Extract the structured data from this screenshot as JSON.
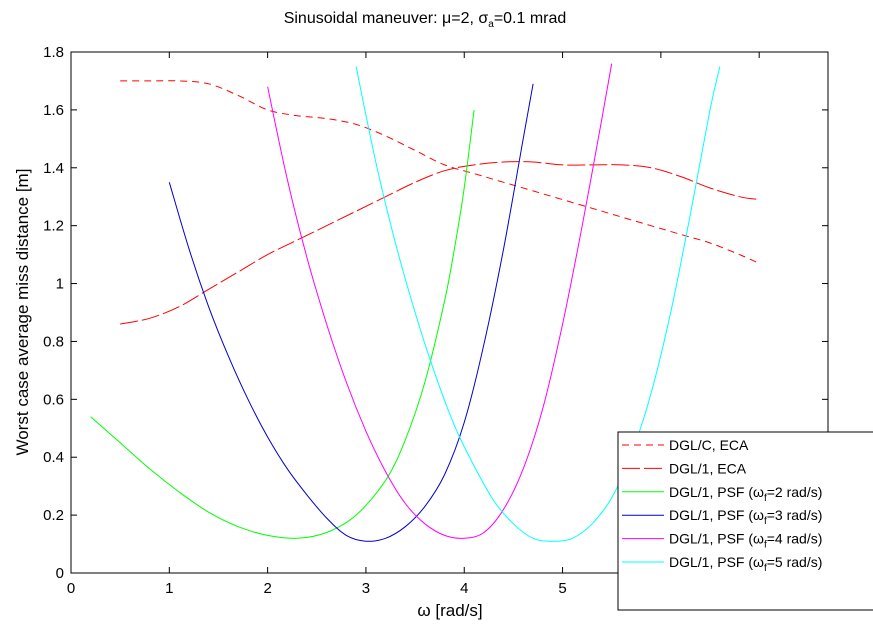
{
  "chart_data": {
    "type": "line",
    "title": "Sinusoidal maneuver: μ=2, σa=0.1 mrad",
    "title_parts": {
      "prefix": "Sinusoidal maneuver: ",
      "mu": "μ",
      "mu_value": "=2, ",
      "sigma": "σ",
      "sigma_sub": "a",
      "sigma_value": "=0.1 mrad"
    },
    "xlabel": "ω [rad/s]",
    "xlabel_parts": {
      "symbol": "ω",
      "unit": " [rad/s]"
    },
    "ylabel": "Worst case average miss distance [m]",
    "xlim": [
      0,
      7.7
    ],
    "ylim": [
      0,
      1.8
    ],
    "xticks": [
      0,
      1,
      2,
      3,
      4,
      5,
      6,
      7
    ],
    "yticks": [
      0,
      0.2,
      0.4,
      0.6,
      0.8,
      1,
      1.2,
      1.4,
      1.6,
      1.8
    ],
    "xtick_labels": [
      "0",
      "1",
      "2",
      "3",
      "4",
      "5",
      "6",
      "7"
    ],
    "ytick_labels": [
      "0",
      "0.2",
      "0.4",
      "0.6",
      "0.8",
      "1",
      "1.2",
      "1.4",
      "1.6",
      "1.8"
    ],
    "grid": false,
    "legend_position": "bottom-right",
    "series": [
      {
        "name": "DGL/C, ECA",
        "label_main": "DGL/C, ECA",
        "color": "#ff0000",
        "dash": "7,5",
        "x": [
          0.5,
          0.8,
          1.1,
          1.4,
          1.7,
          2.0,
          2.3,
          2.6,
          2.9,
          3.2,
          3.5,
          3.8,
          4.1,
          4.4,
          4.7,
          5.0,
          5.3,
          5.6,
          5.9,
          6.2,
          6.5,
          6.8,
          7.0
        ],
        "y": [
          1.7,
          1.7,
          1.7,
          1.69,
          1.65,
          1.6,
          1.58,
          1.57,
          1.55,
          1.51,
          1.46,
          1.41,
          1.38,
          1.35,
          1.32,
          1.29,
          1.26,
          1.23,
          1.2,
          1.17,
          1.14,
          1.1,
          1.07
        ]
      },
      {
        "name": "DGL/1, ECA",
        "label_main": "DGL/1, ECA",
        "color": "#ff0000",
        "dash": "18,4",
        "x": [
          0.5,
          0.8,
          1.1,
          1.4,
          1.7,
          2.0,
          2.3,
          2.6,
          2.9,
          3.2,
          3.5,
          3.8,
          4.1,
          4.4,
          4.7,
          5.0,
          5.3,
          5.6,
          5.9,
          6.2,
          6.5,
          6.8,
          7.0
        ],
        "y": [
          0.86,
          0.88,
          0.92,
          0.98,
          1.04,
          1.1,
          1.15,
          1.2,
          1.25,
          1.3,
          1.35,
          1.39,
          1.41,
          1.42,
          1.42,
          1.41,
          1.41,
          1.41,
          1.4,
          1.37,
          1.33,
          1.3,
          1.29
        ]
      },
      {
        "name": "DGL/1, PSF (ωf=2 rad/s)",
        "label_main": "DGL/1, PSF (",
        "label_omega": "ω",
        "label_sub": "f",
        "label_tail": "=2 rad/s)",
        "color": "#00ff00",
        "dash": "",
        "x": [
          0.2,
          0.5,
          0.8,
          1.1,
          1.4,
          1.7,
          2.0,
          2.3,
          2.6,
          2.9,
          3.2,
          3.4,
          3.6,
          3.8,
          3.9,
          4.0,
          4.1
        ],
        "y": [
          0.54,
          0.45,
          0.36,
          0.28,
          0.21,
          0.16,
          0.13,
          0.12,
          0.14,
          0.2,
          0.32,
          0.46,
          0.66,
          0.94,
          1.12,
          1.33,
          1.6
        ]
      },
      {
        "name": "DGL/1, PSF (ωf=3 rad/s)",
        "label_main": "DGL/1, PSF (",
        "label_omega": "ω",
        "label_sub": "f",
        "label_tail": "=3 rad/s)",
        "color": "#0000cc",
        "dash": "",
        "x": [
          1.0,
          1.2,
          1.4,
          1.6,
          1.8,
          2.0,
          2.2,
          2.4,
          2.6,
          2.8,
          3.0,
          3.2,
          3.4,
          3.6,
          3.8,
          4.0,
          4.2,
          4.4,
          4.6,
          4.7
        ],
        "y": [
          1.35,
          1.12,
          0.92,
          0.75,
          0.6,
          0.47,
          0.36,
          0.27,
          0.19,
          0.13,
          0.11,
          0.12,
          0.16,
          0.23,
          0.34,
          0.52,
          0.79,
          1.12,
          1.5,
          1.69
        ]
      },
      {
        "name": "DGL/1, PSF (ωf=4 rad/s)",
        "label_main": "DGL/1, PSF (",
        "label_omega": "ω",
        "label_sub": "f",
        "label_tail": "=4 rad/s)",
        "color": "#ff00ff",
        "dash": "",
        "x": [
          2.0,
          2.2,
          2.4,
          2.6,
          2.8,
          3.0,
          3.2,
          3.4,
          3.6,
          3.8,
          4.0,
          4.2,
          4.4,
          4.6,
          4.8,
          5.0,
          5.2,
          5.4,
          5.5
        ],
        "y": [
          1.68,
          1.36,
          1.09,
          0.86,
          0.66,
          0.49,
          0.35,
          0.24,
          0.17,
          0.13,
          0.12,
          0.14,
          0.22,
          0.36,
          0.57,
          0.86,
          1.2,
          1.57,
          1.76
        ]
      },
      {
        "name": "DGL/1, PSF (ωf=5 rad/s)",
        "label_main": "DGL/1, PSF (",
        "label_omega": "ω",
        "label_sub": "f",
        "label_tail": "=5 rad/s)",
        "color": "#00ffff",
        "dash": "",
        "x": [
          2.9,
          3.1,
          3.3,
          3.5,
          3.7,
          3.9,
          4.1,
          4.3,
          4.5,
          4.7,
          4.9,
          5.1,
          5.3,
          5.5,
          5.7,
          5.9,
          6.1,
          6.3,
          6.5,
          6.6
        ],
        "y": [
          1.75,
          1.42,
          1.14,
          0.9,
          0.69,
          0.51,
          0.37,
          0.25,
          0.17,
          0.12,
          0.11,
          0.12,
          0.17,
          0.26,
          0.41,
          0.62,
          0.9,
          1.24,
          1.6,
          1.75
        ]
      }
    ]
  }
}
